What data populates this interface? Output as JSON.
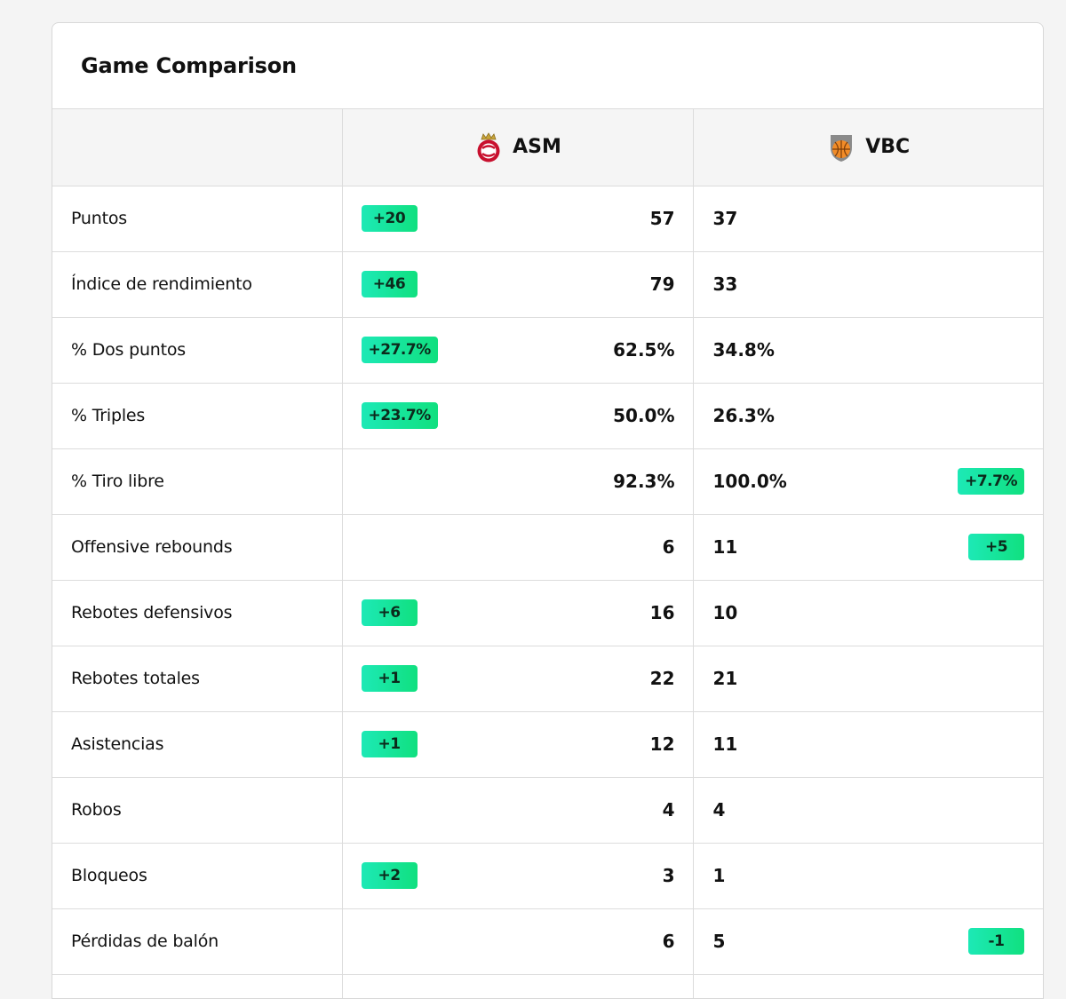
{
  "card": {
    "title": "Game Comparison"
  },
  "teams": {
    "home": {
      "abbr": "ASM",
      "icon": "asm-crest-icon"
    },
    "away": {
      "abbr": "VBC",
      "icon": "vbc-crest-icon"
    }
  },
  "colors": {
    "badge_start": "#1de9b6",
    "badge_end": "#10e07f"
  },
  "rows": [
    {
      "label": "Puntos",
      "home": "57",
      "away": "37",
      "home_diff": "+20",
      "away_diff": ""
    },
    {
      "label": "Índice de rendimiento",
      "home": "79",
      "away": "33",
      "home_diff": "+46",
      "away_diff": ""
    },
    {
      "label": "% Dos puntos",
      "home": "62.5%",
      "away": "34.8%",
      "home_diff": "+27.7%",
      "away_diff": ""
    },
    {
      "label": "% Triples",
      "home": "50.0%",
      "away": "26.3%",
      "home_diff": "+23.7%",
      "away_diff": ""
    },
    {
      "label": "% Tiro libre",
      "home": "92.3%",
      "away": "100.0%",
      "home_diff": "",
      "away_diff": "+7.7%"
    },
    {
      "label": "Offensive rebounds",
      "home": "6",
      "away": "11",
      "home_diff": "",
      "away_diff": "+5"
    },
    {
      "label": "Rebotes defensivos",
      "home": "16",
      "away": "10",
      "home_diff": "+6",
      "away_diff": ""
    },
    {
      "label": "Rebotes totales",
      "home": "22",
      "away": "21",
      "home_diff": "+1",
      "away_diff": ""
    },
    {
      "label": "Asistencias",
      "home": "12",
      "away": "11",
      "home_diff": "+1",
      "away_diff": ""
    },
    {
      "label": "Robos",
      "home": "4",
      "away": "4",
      "home_diff": "",
      "away_diff": ""
    },
    {
      "label": "Bloqueos",
      "home": "3",
      "away": "1",
      "home_diff": "+2",
      "away_diff": ""
    },
    {
      "label": "Pérdidas de balón",
      "home": "6",
      "away": "5",
      "home_diff": "",
      "away_diff": "-1"
    }
  ]
}
